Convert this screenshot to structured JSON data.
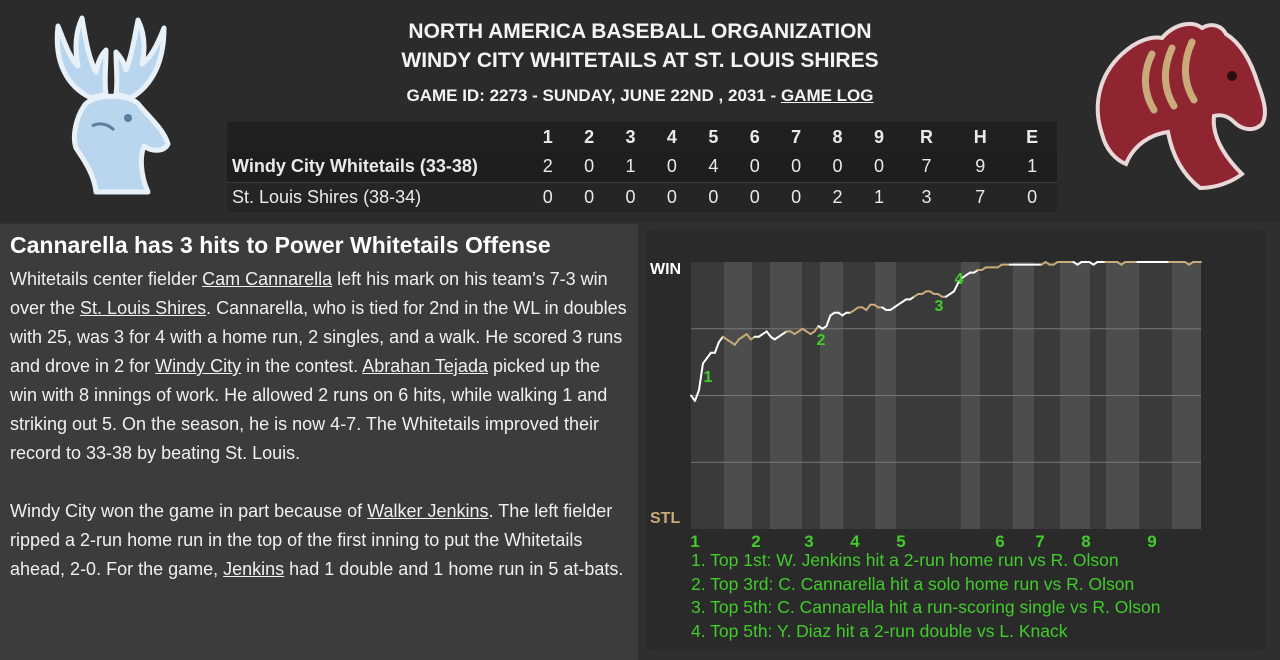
{
  "header": {
    "org_title": "NORTH AMERICA BASEBALL ORGANIZATION",
    "matchup": "WINDY CITY WHITETAILS AT ST. LOUIS SHIRES",
    "game_info": "GAME ID: 2273 - SUNDAY, JUNE 22ND , 2031 - ",
    "game_log_link": "GAME LOG"
  },
  "logos": {
    "away": "whitetails-deer-logo",
    "home": "shires-horse-logo"
  },
  "linescore": {
    "innings": [
      "1",
      "2",
      "3",
      "4",
      "5",
      "6",
      "7",
      "8",
      "9"
    ],
    "totals_headers": [
      "R",
      "H",
      "E"
    ],
    "teams": [
      {
        "name": "Windy City Whitetails (33-38)",
        "innings": [
          "2",
          "0",
          "1",
          "0",
          "4",
          "0",
          "0",
          "0",
          "0"
        ],
        "totals": [
          "7",
          "9",
          "1"
        ]
      },
      {
        "name": "St. Louis Shires (38-34)",
        "innings": [
          "0",
          "0",
          "0",
          "0",
          "0",
          "0",
          "0",
          "2",
          "1"
        ],
        "totals": [
          "3",
          "7",
          "0"
        ]
      }
    ]
  },
  "article": {
    "headline": "Cannarella has 3 hits to Power Whitetails Offense",
    "p1": {
      "t1": "Whitetails center fielder ",
      "l1": "Cam Cannarella",
      "t2": " left his mark on his team's 7-3 win over the ",
      "l2": "St. Louis Shires",
      "t3": ". Cannarella, who is tied for 2nd in the WL in doubles with 25, was 3 for 4 with a home run, 2 singles, and a walk. He scored 3 runs and drove in 2 for ",
      "l3": "Windy City",
      "t4": " in the contest. ",
      "l4": "Abrahan Tejada",
      "t5": " picked up the win with 8 innings of work. He allowed 2 runs on 6 hits, while walking 1 and striking out 5. On the season, he is now 4-7. The Whitetails improved their record to 33-38 by beating St. Louis."
    },
    "p2": {
      "t1": "Windy City won the game in part because of ",
      "l1": "Walker Jenkins",
      "t2": ". The left fielder ripped a 2-run home run in the top of the first inning to put the Whitetails ahead, 2-0. For the game, ",
      "l2": "Jenkins",
      "t3": " had 1 double and 1 home run in 5 at-bats."
    }
  },
  "chart_data": {
    "type": "line",
    "y_top_label": "WIN",
    "y_bottom_label": "STL",
    "ylim": [
      0,
      1
    ],
    "x_inning_labels": [
      "1",
      "2",
      "3",
      "4",
      "5",
      "6",
      "7",
      "8",
      "9"
    ],
    "series": [
      {
        "values": [
          0.5,
          0.48,
          0.52,
          0.62,
          0.64,
          0.66,
          0.66,
          0.7,
          0.72,
          0.71,
          0.7,
          0.69,
          0.71,
          0.72,
          0.73,
          0.71,
          0.72,
          0.72,
          0.73,
          0.74,
          0.72,
          0.71,
          0.72,
          0.73,
          0.74,
          0.74,
          0.73,
          0.74,
          0.75,
          0.74,
          0.73,
          0.74,
          0.76,
          0.75,
          0.76,
          0.8,
          0.81,
          0.81,
          0.8,
          0.81,
          0.81,
          0.82,
          0.83,
          0.83,
          0.82,
          0.84,
          0.84,
          0.83,
          0.83,
          0.82,
          0.82,
          0.83,
          0.84,
          0.85,
          0.86,
          0.86,
          0.87,
          0.88,
          0.88,
          0.89,
          0.89,
          0.88,
          0.88,
          0.87,
          0.87,
          0.88,
          0.89,
          0.92,
          0.94,
          0.95,
          0.96,
          0.96,
          0.97,
          0.97,
          0.98,
          0.98,
          0.98,
          0.98,
          0.99,
          0.99,
          0.99,
          0.99,
          0.99,
          0.99,
          0.99,
          0.99,
          0.99,
          0.99,
          0.99,
          1.0,
          0.99,
          0.99,
          1.0,
          1.0,
          1.0,
          1.0,
          1.0,
          0.99,
          1.0,
          1.0,
          1.0,
          0.99,
          1.0,
          1.0,
          1.0,
          1.0,
          1.0,
          1.0,
          0.99,
          1.0,
          1.0,
          1.0,
          1.0,
          1.0,
          1.0,
          1.0,
          1.0,
          1.0,
          1.0,
          1.0,
          1.0,
          1.0,
          1.0,
          1.0,
          1.0,
          0.99,
          1.0,
          1.0,
          1.0
        ]
      }
    ],
    "events": [
      {
        "marker": "1",
        "text": "1. Top 1st: W. Jenkins hit a 2-run home run vs R. Olson"
      },
      {
        "marker": "2",
        "text": "2. Top 3rd: C. Cannarella hit a solo home run vs R. Olson"
      },
      {
        "marker": "3",
        "text": "3. Top 5th: C. Cannarella hit a run-scoring single vs R. Olson"
      },
      {
        "marker": "4",
        "text": "4. Top 5th: Y. Diaz hit a 2-run double vs L. Knack"
      }
    ],
    "colors": {
      "away": "#ffffff",
      "home": "#c9aa78",
      "marker": "#41cc2a",
      "band": "#4d4d4d",
      "grid": "#777777"
    }
  }
}
